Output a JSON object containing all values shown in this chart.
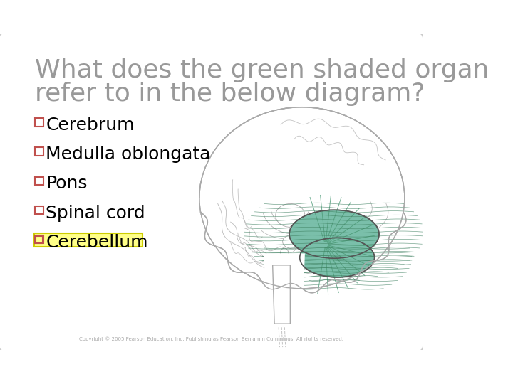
{
  "title_line1": "What does the green shaded organ",
  "title_line2": "refer to in the below diagram?",
  "title_color": "#999999",
  "title_fontsize": 26,
  "bg_color": "#ffffff",
  "border_color": "#cccccc",
  "options": [
    "□Cerebrum",
    "□Medulla oblongata",
    "□Pons",
    "□Spinal cord",
    "□Cerebellum"
  ],
  "option_color": "#000000",
  "checkbox_color": "#c0504d",
  "highlight_index": 4,
  "highlight_bg": "#ffff88",
  "highlight_border": "#cccc00",
  "option_fontsize": 18,
  "copyright_text": "Copyright © 2005 Pearson Education, Inc. Publishing as Pearson Benjamin Cummings. All rights reserved.",
  "copyright_fontsize": 5,
  "copyright_color": "#aaaaaa",
  "cerebellum_color": "#7abfaa",
  "cerebellum_edge": "#555555",
  "brain_edge": "#aaaaaa",
  "brain_fill": "#ffffff"
}
